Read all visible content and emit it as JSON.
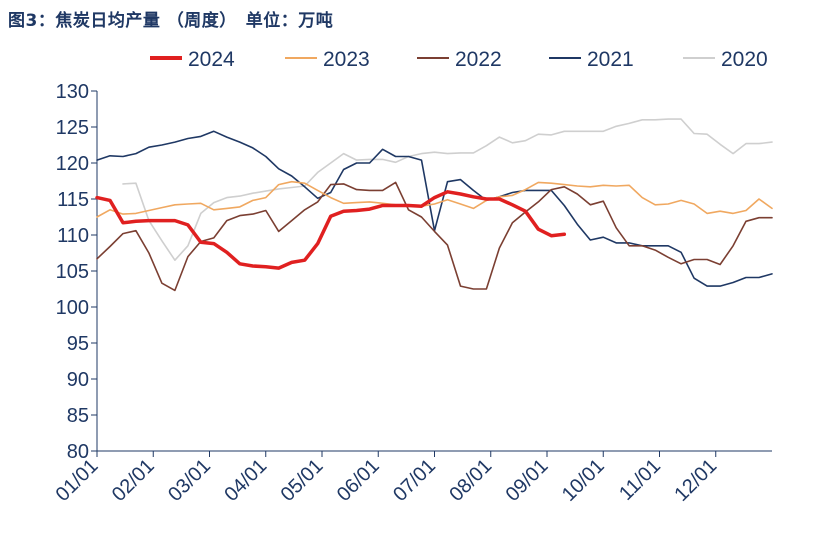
{
  "title": "图3：焦炭日均产量 （周度）　单位：万吨",
  "chart_data": {
    "type": "line",
    "title": "图3：焦炭日均产量 （周度）　单位：万吨",
    "unit": "万吨",
    "xlabel": "",
    "ylabel": "",
    "ylim": [
      80,
      130
    ],
    "y_ticks": [
      80,
      85,
      90,
      95,
      100,
      105,
      110,
      115,
      120,
      125,
      130
    ],
    "x_ticks": [
      "01/01",
      "02/01",
      "03/01",
      "04/01",
      "05/01",
      "06/01",
      "07/01",
      "08/01",
      "09/01",
      "10/01",
      "11/01",
      "12/01"
    ],
    "x_range_weeks": [
      0,
      52
    ],
    "grid": false,
    "legend_position": "top",
    "series": [
      {
        "name": "2024",
        "color": "#e02020",
        "width": 3.5,
        "x": [
          0,
          1,
          2,
          3,
          4,
          5,
          6,
          7,
          8,
          9,
          10,
          11,
          12,
          13,
          14,
          15,
          16,
          17,
          18,
          19,
          20,
          21,
          22,
          23,
          24,
          25,
          26,
          27,
          28,
          29,
          30,
          31,
          32,
          33,
          34,
          35,
          36,
          37,
          38
        ],
        "y": [
          115.2,
          114.8,
          111.7,
          111.9,
          112.0,
          112.0,
          112.0,
          111.4,
          109.0,
          108.8,
          107.6,
          106.0,
          105.7,
          105.6,
          105.4,
          106.2,
          106.5,
          108.8,
          112.6,
          113.3,
          113.4,
          113.6,
          114.1,
          114.1,
          114.1,
          114.0,
          115.2,
          116.0,
          115.7,
          115.3,
          115.0,
          115.0,
          114.2,
          113.3,
          110.8,
          109.9,
          110.1,
          null,
          null
        ]
      },
      {
        "name": "2023",
        "color": "#f0a860",
        "width": 1.6,
        "x": [
          0,
          1,
          2,
          3,
          4,
          5,
          6,
          7,
          8,
          9,
          10,
          11,
          12,
          13,
          14,
          15,
          16,
          17,
          18,
          19,
          20,
          21,
          22,
          23,
          24,
          25,
          26,
          27,
          28,
          29,
          30,
          31,
          32,
          33,
          34,
          35,
          36,
          37,
          38,
          39,
          40,
          41,
          42,
          43,
          44,
          45,
          46,
          47,
          48,
          49,
          50,
          51,
          52
        ],
        "y": [
          112.5,
          113.5,
          112.9,
          113.0,
          113.4,
          113.8,
          114.2,
          114.3,
          114.4,
          113.5,
          113.7,
          113.9,
          114.8,
          115.2,
          117.0,
          117.4,
          117.2,
          116.2,
          115.2,
          114.4,
          114.5,
          114.6,
          114.4,
          114.2,
          114.0,
          114.0,
          114.3,
          114.9,
          114.3,
          113.7,
          114.8,
          115.3,
          115.5,
          116.3,
          117.3,
          117.2,
          117.0,
          116.8,
          116.7,
          116.9,
          116.8,
          116.9,
          115.2,
          114.2,
          114.3,
          114.8,
          114.3,
          113.0,
          113.3,
          113.0,
          113.4,
          115.0,
          113.7
        ]
      },
      {
        "name": "2022",
        "color": "#7b3f32",
        "width": 1.6,
        "x": [
          0,
          1,
          2,
          3,
          4,
          5,
          6,
          7,
          8,
          9,
          10,
          11,
          12,
          13,
          14,
          15,
          16,
          17,
          18,
          19,
          20,
          21,
          22,
          23,
          24,
          25,
          26,
          27,
          28,
          29,
          30,
          31,
          32,
          33,
          34,
          35,
          36,
          37,
          38,
          39,
          40,
          41,
          42,
          43,
          44,
          45,
          46,
          47,
          48,
          49,
          50,
          51,
          52
        ],
        "y": [
          106.7,
          108.4,
          110.2,
          110.6,
          107.5,
          103.3,
          102.3,
          107.0,
          109.1,
          109.6,
          112.0,
          112.7,
          112.9,
          113.4,
          110.5,
          112.0,
          113.5,
          114.6,
          117.0,
          117.1,
          116.3,
          116.2,
          116.2,
          117.3,
          113.5,
          112.5,
          110.5,
          108.6,
          102.9,
          102.5,
          102.5,
          108.2,
          111.7,
          113.2,
          114.6,
          116.3,
          116.7,
          115.7,
          114.2,
          114.7,
          111.0,
          108.5,
          108.5,
          107.9,
          106.9,
          106.0,
          106.6,
          106.6,
          105.9,
          108.5,
          111.9,
          112.4,
          112.4
        ]
      },
      {
        "name": "2021",
        "color": "#1f3864",
        "width": 1.6,
        "x": [
          0,
          1,
          2,
          3,
          4,
          5,
          6,
          7,
          8,
          9,
          10,
          11,
          12,
          13,
          14,
          15,
          16,
          17,
          18,
          19,
          20,
          21,
          22,
          23,
          24,
          25,
          26,
          27,
          28,
          29,
          30,
          31,
          32,
          33,
          34,
          35,
          36,
          37,
          38,
          39,
          40,
          41,
          42,
          43,
          44,
          45,
          46,
          47,
          48,
          49,
          50,
          51,
          52
        ],
        "y": [
          120.4,
          121.0,
          120.9,
          121.3,
          122.2,
          122.5,
          122.9,
          123.4,
          123.7,
          124.4,
          123.6,
          122.9,
          122.1,
          120.9,
          119.2,
          118.2,
          116.7,
          115.1,
          115.9,
          119.1,
          120.0,
          120.0,
          121.9,
          120.9,
          120.9,
          120.4,
          110.6,
          117.4,
          117.7,
          116.2,
          114.8,
          115.3,
          115.9,
          116.2,
          116.2,
          116.2,
          114.1,
          111.5,
          109.3,
          109.7,
          108.9,
          108.9,
          108.5,
          108.5,
          108.5,
          107.6,
          104.0,
          102.9,
          102.9,
          103.4,
          104.1,
          104.1,
          104.6
        ]
      },
      {
        "name": "2020",
        "color": "#cfcfcf",
        "width": 1.6,
        "x": [
          2,
          3,
          4,
          5,
          6,
          7,
          8,
          9,
          10,
          11,
          12,
          13,
          14,
          15,
          16,
          17,
          18,
          19,
          20,
          21,
          22,
          23,
          24,
          25,
          26,
          27,
          28,
          29,
          30,
          31,
          32,
          33,
          34,
          35,
          36,
          37,
          38,
          39,
          40,
          41,
          42,
          43,
          44,
          45,
          46,
          47,
          48,
          49,
          50,
          51,
          52
        ],
        "y": [
          117.1,
          117.2,
          112.0,
          109.2,
          106.5,
          108.5,
          113.0,
          114.5,
          115.2,
          115.4,
          115.8,
          116.1,
          116.4,
          116.6,
          116.8,
          118.7,
          120.0,
          121.3,
          120.4,
          120.5,
          120.5,
          120.1,
          120.9,
          121.3,
          121.5,
          121.3,
          121.4,
          121.4,
          122.4,
          123.6,
          122.8,
          123.1,
          124.0,
          123.9,
          124.4,
          124.4,
          124.4,
          124.4,
          125.1,
          125.5,
          126.0,
          126.0,
          126.1,
          126.1,
          124.1,
          124.0,
          122.6,
          121.3,
          122.7,
          122.7,
          122.9
        ]
      }
    ]
  }
}
